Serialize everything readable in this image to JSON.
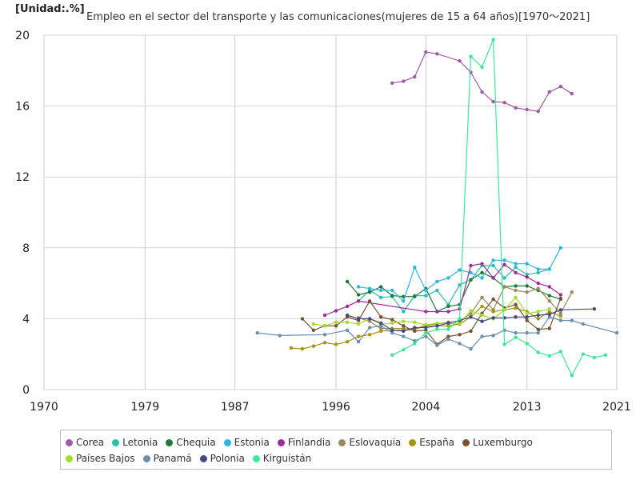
{
  "header": {
    "unit": "[Unidad:.%]",
    "title": "Empleo en el sector del transporte y las comunicaciones(mujeres de 15 a 64 años)[1970～2021]"
  },
  "chart_data": {
    "type": "line",
    "title": "Empleo en el sector del transporte y las comunicaciones(mujeres de 15 a 64 años)[1970～2021]",
    "unit": "[Unidad:.%]",
    "xlim": [
      1970,
      2021
    ],
    "ylim": [
      0,
      20
    ],
    "x_ticks": [
      1970,
      1979,
      1987,
      1996,
      2004,
      2013,
      2021
    ],
    "y_ticks": [
      0,
      4,
      8,
      12,
      16,
      20
    ],
    "grid": true,
    "legend_position": "bottom",
    "series": [
      {
        "name": "Corea",
        "color": "#a05aa8",
        "points": [
          [
            2001,
            17.3
          ],
          [
            2002,
            17.4
          ],
          [
            2003,
            17.65
          ],
          [
            2004,
            19.05
          ],
          [
            2005,
            18.95
          ],
          [
            2007,
            18.55
          ],
          [
            2008,
            17.9
          ],
          [
            2009,
            16.8
          ],
          [
            2010,
            16.25
          ],
          [
            2011,
            16.2
          ],
          [
            2012,
            15.9
          ],
          [
            2013,
            15.8
          ],
          [
            2014,
            15.7
          ],
          [
            2015,
            16.8
          ],
          [
            2016,
            17.1
          ],
          [
            2017,
            16.7
          ]
        ]
      },
      {
        "name": "Letonia",
        "color": "#2bbfae",
        "points": [
          [
            1998,
            5.0
          ],
          [
            1999,
            5.6
          ],
          [
            2000,
            5.2
          ],
          [
            2001,
            5.25
          ],
          [
            2002,
            4.4
          ],
          [
            2003,
            5.3
          ],
          [
            2004,
            5.3
          ],
          [
            2005,
            5.6
          ],
          [
            2006,
            4.8
          ],
          [
            2007,
            5.9
          ],
          [
            2008,
            6.2
          ],
          [
            2009,
            7.0
          ],
          [
            2010,
            7.0
          ],
          [
            2011,
            6.3
          ],
          [
            2012,
            6.9
          ],
          [
            2013,
            6.5
          ],
          [
            2014,
            6.6
          ],
          [
            2015,
            6.8
          ]
        ]
      },
      {
        "name": "Chequia",
        "color": "#1f7a3a",
        "points": [
          [
            1997,
            6.1
          ],
          [
            1998,
            5.35
          ],
          [
            1999,
            5.5
          ],
          [
            2000,
            5.8
          ],
          [
            2001,
            5.3
          ],
          [
            2002,
            5.25
          ],
          [
            2003,
            5.25
          ],
          [
            2004,
            5.7
          ],
          [
            2005,
            4.4
          ],
          [
            2006,
            4.7
          ],
          [
            2007,
            4.8
          ],
          [
            2008,
            6.2
          ],
          [
            2009,
            6.6
          ],
          [
            2010,
            6.3
          ],
          [
            2011,
            5.8
          ],
          [
            2012,
            5.85
          ],
          [
            2013,
            5.85
          ],
          [
            2014,
            5.6
          ],
          [
            2015,
            5.3
          ],
          [
            2016,
            5.1
          ]
        ]
      },
      {
        "name": "Estonia",
        "color": "#2ab8e2",
        "points": [
          [
            1998,
            5.8
          ],
          [
            1999,
            5.7
          ],
          [
            2000,
            5.6
          ],
          [
            2001,
            5.6
          ],
          [
            2002,
            5.0
          ],
          [
            2003,
            6.9
          ],
          [
            2004,
            5.6
          ],
          [
            2005,
            6.1
          ],
          [
            2006,
            6.3
          ],
          [
            2007,
            6.75
          ],
          [
            2008,
            6.6
          ],
          [
            2009,
            6.3
          ],
          [
            2010,
            7.3
          ],
          [
            2011,
            7.3
          ],
          [
            2012,
            7.1
          ],
          [
            2013,
            7.1
          ],
          [
            2014,
            6.8
          ],
          [
            2015,
            6.8
          ],
          [
            2016,
            8.0
          ]
        ]
      },
      {
        "name": "Finlandia",
        "color": "#a02a9a",
        "points": [
          [
            1995,
            4.2
          ],
          [
            1996,
            4.45
          ],
          [
            1997,
            4.7
          ],
          [
            1998,
            5.0
          ],
          [
            2004,
            4.4
          ],
          [
            2005,
            4.4
          ],
          [
            2006,
            4.4
          ],
          [
            2007,
            4.55
          ],
          [
            2008,
            7.0
          ],
          [
            2009,
            7.1
          ],
          [
            2010,
            6.3
          ],
          [
            2011,
            7.05
          ],
          [
            2012,
            6.6
          ],
          [
            2013,
            6.35
          ],
          [
            2014,
            6.0
          ],
          [
            2015,
            5.8
          ],
          [
            2016,
            5.35
          ]
        ]
      },
      {
        "name": "Eslovaquia",
        "color": "#9e8a5e",
        "points": [
          [
            1998,
            4.05
          ],
          [
            1999,
            3.85
          ],
          [
            2000,
            3.45
          ],
          [
            2001,
            3.45
          ],
          [
            2002,
            3.45
          ],
          [
            2003,
            3.4
          ],
          [
            2004,
            3.65
          ],
          [
            2005,
            3.7
          ],
          [
            2006,
            3.8
          ],
          [
            2007,
            3.85
          ],
          [
            2008,
            4.3
          ],
          [
            2009,
            5.2
          ],
          [
            2010,
            4.5
          ],
          [
            2011,
            5.8
          ],
          [
            2012,
            5.6
          ],
          [
            2013,
            5.5
          ],
          [
            2014,
            5.7
          ],
          [
            2015,
            5.0
          ],
          [
            2016,
            4.3
          ],
          [
            2017,
            5.5
          ]
        ]
      },
      {
        "name": "España",
        "color": "#a89410",
        "points": [
          [
            1992,
            2.35
          ],
          [
            1993,
            2.3
          ],
          [
            1994,
            2.45
          ],
          [
            1995,
            2.65
          ],
          [
            1996,
            2.55
          ],
          [
            1997,
            2.7
          ],
          [
            1998,
            3.0
          ],
          [
            1999,
            3.1
          ],
          [
            2000,
            3.3
          ],
          [
            2001,
            3.35
          ],
          [
            2002,
            3.35
          ],
          [
            2003,
            3.4
          ],
          [
            2004,
            3.6
          ],
          [
            2005,
            3.6
          ],
          [
            2006,
            3.6
          ],
          [
            2007,
            3.7
          ],
          [
            2008,
            4.1
          ],
          [
            2009,
            4.7
          ],
          [
            2010,
            4.4
          ],
          [
            2011,
            4.5
          ],
          [
            2012,
            4.6
          ],
          [
            2013,
            4.4
          ],
          [
            2014,
            4.0
          ],
          [
            2015,
            4.4
          ],
          [
            2016,
            4.15
          ]
        ]
      },
      {
        "name": "Luxemburgo",
        "color": "#7a5230",
        "points": [
          [
            1993,
            4.0
          ],
          [
            1994,
            3.35
          ],
          [
            1995,
            3.6
          ],
          [
            1996,
            3.6
          ],
          [
            1997,
            4.1
          ],
          [
            1998,
            3.9
          ],
          [
            1999,
            5.0
          ],
          [
            2000,
            4.1
          ],
          [
            2001,
            3.95
          ],
          [
            2002,
            3.6
          ],
          [
            2003,
            3.3
          ],
          [
            2004,
            3.35
          ],
          [
            2005,
            2.55
          ],
          [
            2006,
            3.0
          ],
          [
            2007,
            3.1
          ],
          [
            2008,
            3.3
          ],
          [
            2009,
            4.3
          ],
          [
            2010,
            5.1
          ],
          [
            2011,
            4.6
          ],
          [
            2012,
            4.8
          ],
          [
            2013,
            3.9
          ],
          [
            2014,
            3.4
          ],
          [
            2015,
            3.45
          ],
          [
            2016,
            5.15
          ]
        ]
      },
      {
        "name": "Países Bajos",
        "color": "#9ee02a",
        "points": [
          [
            1994,
            3.7
          ],
          [
            1995,
            3.6
          ],
          [
            1996,
            3.8
          ],
          [
            1997,
            3.8
          ],
          [
            1998,
            3.7
          ],
          [
            1999,
            4.0
          ],
          [
            2000,
            3.7
          ],
          [
            2001,
            3.75
          ],
          [
            2002,
            3.85
          ],
          [
            2003,
            3.8
          ],
          [
            2004,
            3.65
          ],
          [
            2005,
            3.75
          ],
          [
            2006,
            3.7
          ],
          [
            2007,
            3.75
          ],
          [
            2008,
            4.45
          ],
          [
            2009,
            4.2
          ],
          [
            2010,
            4.0
          ],
          [
            2011,
            4.5
          ],
          [
            2012,
            5.2
          ],
          [
            2013,
            4.3
          ],
          [
            2014,
            4.4
          ],
          [
            2015,
            4.55
          ]
        ]
      },
      {
        "name": "Panamá",
        "color": "#6b8fae",
        "points": [
          [
            1989,
            3.2
          ],
          [
            1991,
            3.05
          ],
          [
            1995,
            3.1
          ],
          [
            1997,
            3.35
          ],
          [
            1998,
            2.7
          ],
          [
            1999,
            3.5
          ],
          [
            2000,
            3.6
          ],
          [
            2001,
            3.2
          ],
          [
            2002,
            3.0
          ],
          [
            2003,
            2.75
          ],
          [
            2004,
            3.0
          ],
          [
            2005,
            2.5
          ],
          [
            2006,
            2.85
          ],
          [
            2007,
            2.6
          ],
          [
            2008,
            2.3
          ],
          [
            2009,
            3.0
          ],
          [
            2010,
            3.05
          ],
          [
            2011,
            3.35
          ],
          [
            2012,
            3.2
          ],
          [
            2013,
            3.2
          ],
          [
            2014,
            3.2
          ],
          [
            2015,
            4.1
          ],
          [
            2016,
            3.9
          ],
          [
            2017,
            3.9
          ],
          [
            2018,
            3.7
          ],
          [
            2021,
            3.2
          ]
        ]
      },
      {
        "name": "Polonia",
        "color": "#474a7e",
        "points": [
          [
            1997,
            4.2
          ],
          [
            1998,
            4.0
          ],
          [
            1999,
            4.0
          ],
          [
            2000,
            3.75
          ],
          [
            2001,
            3.35
          ],
          [
            2002,
            3.3
          ],
          [
            2003,
            3.5
          ],
          [
            2004,
            3.5
          ],
          [
            2005,
            3.6
          ],
          [
            2006,
            3.75
          ],
          [
            2007,
            3.9
          ],
          [
            2008,
            4.1
          ],
          [
            2009,
            3.85
          ],
          [
            2010,
            4.05
          ],
          [
            2011,
            4.05
          ],
          [
            2012,
            4.1
          ],
          [
            2013,
            4.1
          ],
          [
            2014,
            4.2
          ],
          [
            2015,
            4.25
          ],
          [
            2016,
            4.5
          ],
          [
            2019,
            4.55
          ]
        ]
      },
      {
        "name": "Kirguistán",
        "color": "#3de89a",
        "points": [
          [
            2001,
            1.95
          ],
          [
            2002,
            2.25
          ],
          [
            2003,
            2.6
          ],
          [
            2004,
            3.2
          ],
          [
            2005,
            3.4
          ],
          [
            2006,
            3.4
          ],
          [
            2007,
            4.0
          ],
          [
            2008,
            18.8
          ],
          [
            2009,
            18.2
          ],
          [
            2010,
            19.75
          ],
          [
            2011,
            2.55
          ],
          [
            2012,
            2.95
          ],
          [
            2013,
            2.6
          ],
          [
            2014,
            2.1
          ],
          [
            2015,
            1.9
          ],
          [
            2016,
            2.15
          ],
          [
            2017,
            0.8
          ],
          [
            2018,
            2.0
          ],
          [
            2019,
            1.8
          ],
          [
            2020,
            1.95
          ]
        ]
      }
    ]
  }
}
